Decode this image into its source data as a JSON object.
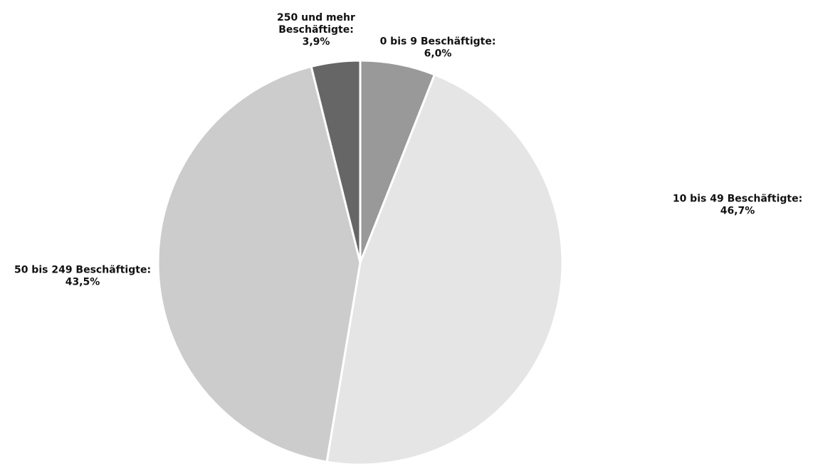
{
  "chart_data": {
    "type": "pie",
    "title": "",
    "start_angle_deg": 0,
    "direction": "clockwise",
    "slices": [
      {
        "label": "0 bis 9 Beschäftigte:",
        "value_label": "6,0%",
        "value": 6.0,
        "color": "#999999"
      },
      {
        "label": "10 bis 49 Beschäftigte:",
        "value_label": "46,7%",
        "value": 46.7,
        "color": "#e5e5e5"
      },
      {
        "label": "50 bis 249 Beschäftigte:",
        "value_label": "43,5%",
        "value": 43.5,
        "color": "#cccccc"
      },
      {
        "label_lines": [
          "250 und mehr",
          "Beschäftigte:"
        ],
        "value_label": "3,9%",
        "value": 3.9,
        "color": "#666666"
      }
    ]
  }
}
